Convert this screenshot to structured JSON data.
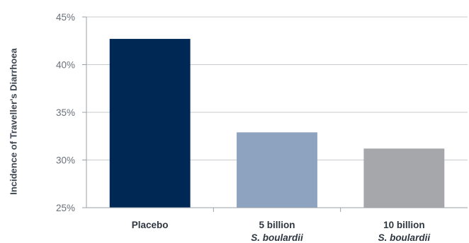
{
  "chart_data": {
    "type": "bar",
    "title": "",
    "xlabel": "",
    "ylabel": "Incidence of Traveller's Diarrhoea",
    "ylim": [
      25,
      45
    ],
    "yticks": [
      25,
      30,
      35,
      40,
      45
    ],
    "ytick_labels": [
      "25%",
      "30%",
      "35%",
      "40%",
      "45%"
    ],
    "grid": true,
    "categories": [
      {
        "line1": "Placebo",
        "line2": ""
      },
      {
        "line1": "5 billion",
        "line2": "S. boulardii"
      },
      {
        "line1": "10 billion",
        "line2": "S. boulardii"
      }
    ],
    "values": [
      42.7,
      32.9,
      31.2
    ],
    "colors": [
      "#002855",
      "#8ea3c0",
      "#a5a7ab"
    ]
  }
}
